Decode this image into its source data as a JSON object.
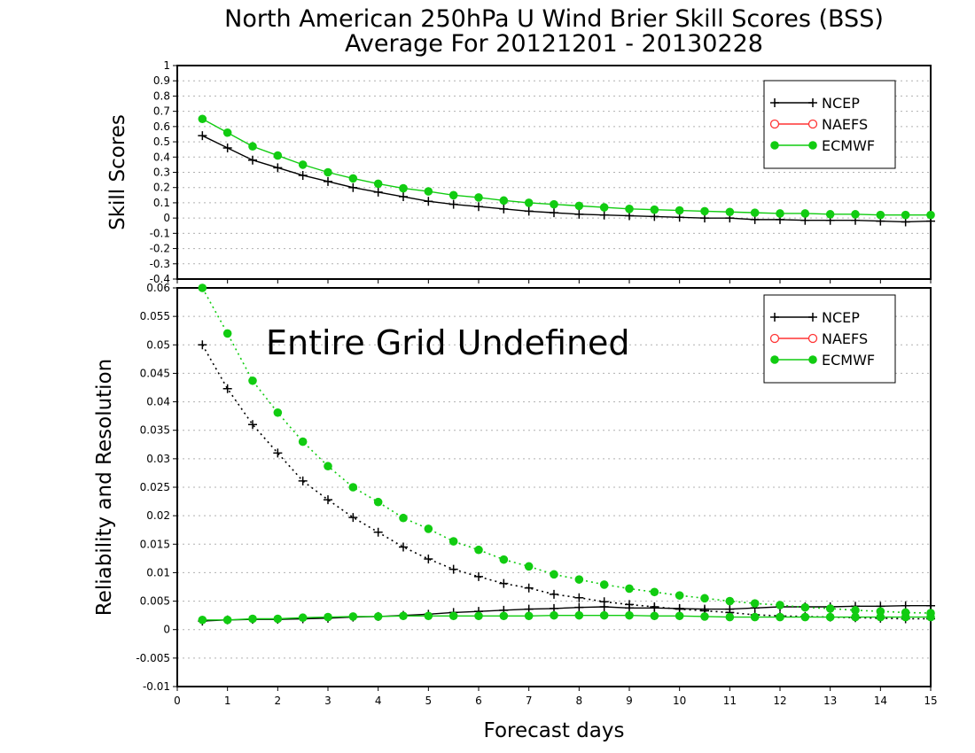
{
  "title_line1": "North American 250hPa U Wind Brier Skill Scores (BSS)",
  "title_line2": "Average For 20121201 - 20130228",
  "colors": {
    "ncep": "#000000",
    "naefs": "#ff3333",
    "ecmwf": "#11cc11",
    "grid": "#b0b0b0"
  },
  "chart_data": [
    {
      "type": "line",
      "ylabel": "Skill Scores",
      "xlim": [
        0,
        15
      ],
      "ylim": [
        -0.4,
        1
      ],
      "grid": true,
      "legend_position": "top-right",
      "x_ticks": [
        "0",
        "1",
        "2",
        "3",
        "4",
        "5",
        "6",
        "7",
        "8",
        "9",
        "10",
        "11",
        "12",
        "13",
        "14",
        "15"
      ],
      "y_ticks": [
        "-0.4",
        "-0.3",
        "-0.2",
        "-0.1",
        "0",
        "0.1",
        "0.2",
        "0.3",
        "0.4",
        "0.5",
        "0.6",
        "0.7",
        "0.8",
        "0.9",
        "1"
      ],
      "x": [
        0.5,
        1,
        1.5,
        2,
        2.5,
        3,
        3.5,
        4,
        4.5,
        5,
        5.5,
        6,
        6.5,
        7,
        7.5,
        8,
        8.5,
        9,
        9.5,
        10,
        10.5,
        11,
        11.5,
        12,
        12.5,
        13,
        13.5,
        14,
        14.5,
        15
      ],
      "legend": [
        "NCEP",
        "NAEFS",
        "ECMWF"
      ],
      "series": [
        {
          "name": "NCEP",
          "style": "solid",
          "marker": "plus",
          "color": "#000000",
          "values": [
            0.54,
            0.46,
            0.38,
            0.33,
            0.28,
            0.24,
            0.2,
            0.17,
            0.14,
            0.11,
            0.09,
            0.075,
            0.06,
            0.045,
            0.035,
            0.025,
            0.02,
            0.015,
            0.01,
            0.005,
            0.0,
            0.0,
            -0.01,
            -0.01,
            -0.015,
            -0.015,
            -0.015,
            -0.02,
            -0.025,
            -0.02
          ]
        },
        {
          "name": "ECMWF",
          "style": "solid",
          "marker": "dot",
          "color": "#11cc11",
          "values": [
            0.65,
            0.56,
            0.47,
            0.41,
            0.35,
            0.3,
            0.26,
            0.225,
            0.195,
            0.175,
            0.15,
            0.135,
            0.115,
            0.1,
            0.09,
            0.08,
            0.07,
            0.06,
            0.055,
            0.05,
            0.045,
            0.04,
            0.035,
            0.03,
            0.03,
            0.025,
            0.025,
            0.02,
            0.02,
            0.02
          ]
        }
      ]
    },
    {
      "type": "line",
      "ylabel": "Reliability and Resolution",
      "xlabel": "Forecast days",
      "annotation": "Entire Grid Undefined",
      "xlim": [
        0,
        15
      ],
      "ylim": [
        -0.01,
        0.06
      ],
      "grid": true,
      "legend_position": "top-right",
      "x_ticks": [
        "0",
        "1",
        "2",
        "3",
        "4",
        "5",
        "6",
        "7",
        "8",
        "9",
        "10",
        "11",
        "12",
        "13",
        "14",
        "15"
      ],
      "y_ticks": [
        "-0.01",
        "-0.005",
        "0",
        "0.005",
        "0.01",
        "0.015",
        "0.02",
        "0.025",
        "0.03",
        "0.035",
        "0.04",
        "0.045",
        "0.05",
        "0.055",
        "0.06"
      ],
      "x": [
        0.5,
        1,
        1.5,
        2,
        2.5,
        3,
        3.5,
        4,
        4.5,
        5,
        5.5,
        6,
        6.5,
        7,
        7.5,
        8,
        8.5,
        9,
        9.5,
        10,
        10.5,
        11,
        11.5,
        12,
        12.5,
        13,
        13.5,
        14,
        14.5,
        15
      ],
      "legend": [
        "NCEP",
        "NAEFS",
        "ECMWF"
      ],
      "series": [
        {
          "name": "NCEP",
          "style": "dotted",
          "marker": "plus",
          "color": "#000000",
          "values": [
            0.05,
            0.0423,
            0.036,
            0.031,
            0.0261,
            0.0228,
            0.0197,
            0.0171,
            0.0145,
            0.0124,
            0.0106,
            0.0093,
            0.0081,
            0.0073,
            0.0062,
            0.0056,
            0.0049,
            0.0044,
            0.004,
            0.0036,
            0.0033,
            0.003,
            0.0026,
            0.0024,
            0.0023,
            0.0022,
            0.0021,
            0.002,
            0.0019,
            0.0019
          ]
        },
        {
          "name": "NCEP",
          "style": "solid",
          "marker": "plus",
          "color": "#000000",
          "values": [
            0.0015,
            0.0017,
            0.0018,
            0.0018,
            0.0019,
            0.002,
            0.0022,
            0.0023,
            0.0025,
            0.0027,
            0.003,
            0.0032,
            0.0034,
            0.0036,
            0.0037,
            0.0039,
            0.004,
            0.0038,
            0.0038,
            0.0037,
            0.0036,
            0.0036,
            0.0038,
            0.004,
            0.004,
            0.004,
            0.0041,
            0.0041,
            0.0042,
            0.0042
          ]
        },
        {
          "name": "ECMWF",
          "style": "dotted",
          "marker": "dot",
          "color": "#11cc11",
          "values": [
            0.06,
            0.052,
            0.0437,
            0.0381,
            0.033,
            0.0287,
            0.025,
            0.0224,
            0.0196,
            0.0177,
            0.0155,
            0.014,
            0.0123,
            0.0111,
            0.0097,
            0.0088,
            0.0079,
            0.0072,
            0.0066,
            0.006,
            0.0055,
            0.005,
            0.0046,
            0.0043,
            0.0039,
            0.0037,
            0.0034,
            0.0032,
            0.003,
            0.0029
          ]
        },
        {
          "name": "ECMWF",
          "style": "solid",
          "marker": "dot",
          "color": "#11cc11",
          "values": [
            0.0017,
            0.0017,
            0.0019,
            0.0019,
            0.0021,
            0.0022,
            0.0023,
            0.0023,
            0.0024,
            0.0024,
            0.0024,
            0.0024,
            0.0024,
            0.0024,
            0.0025,
            0.0025,
            0.0025,
            0.0025,
            0.0024,
            0.0024,
            0.0023,
            0.0022,
            0.0022,
            0.0022,
            0.0022,
            0.0022,
            0.0022,
            0.0022,
            0.0022,
            0.0022
          ]
        }
      ]
    }
  ]
}
